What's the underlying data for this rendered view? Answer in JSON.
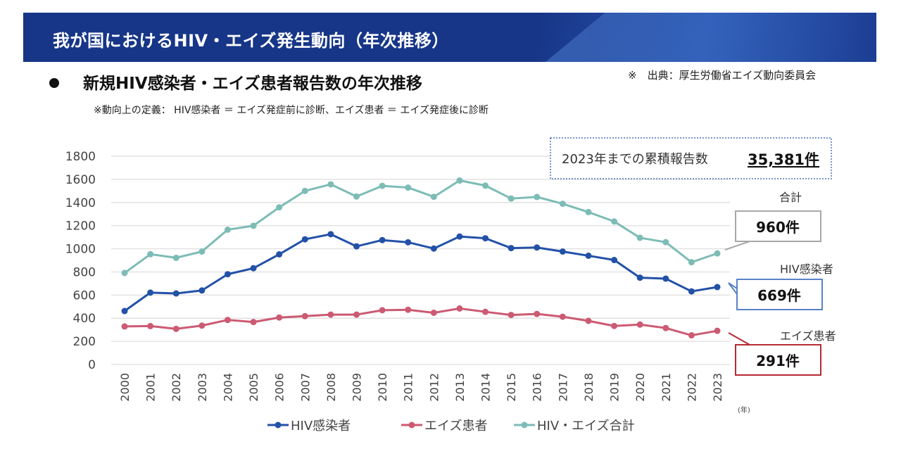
{
  "header": {
    "title": "我が国におけるHIV・エイズ発生動向（年次推移）"
  },
  "subtitle": "新規HIV感染者・エイズ患者報告数の年次推移",
  "source": "※　出典：厚生労働省エイズ動向委員会",
  "definition": "※動向上の定義： HIV感染者 ＝ エイズ発症前に診断、エイズ患者 ＝ エイズ発症後に診断",
  "cumulative": {
    "label": "2023年までの累積報告数",
    "value": "35,381件"
  },
  "callouts": {
    "total": {
      "label": "合計",
      "value": "960件"
    },
    "hiv": {
      "label": "HIV感染者",
      "value": "669件"
    },
    "aids": {
      "label": "エイズ患者",
      "value": "291件"
    }
  },
  "chart_data": {
    "type": "line",
    "x_unit": "(年)",
    "ylim": [
      0,
      1800
    ],
    "y_ticks": [
      "0",
      "200",
      "400",
      "600",
      "800",
      "1000",
      "1200",
      "1400",
      "1600",
      "1800"
    ],
    "grid": true,
    "legend_position": "bottom",
    "categories": [
      "2000",
      "2001",
      "2002",
      "2003",
      "2004",
      "2005",
      "2006",
      "2007",
      "2008",
      "2009",
      "2010",
      "2011",
      "2012",
      "2013",
      "2014",
      "2015",
      "2016",
      "2017",
      "2018",
      "2019",
      "2020",
      "2021",
      "2022",
      "2023"
    ],
    "series": [
      {
        "name": "HIV感染者",
        "color": "#2351a8",
        "values": [
          462,
          621,
          614,
          640,
          780,
          832,
          952,
          1082,
          1126,
          1021,
          1075,
          1056,
          1002,
          1106,
          1091,
          1006,
          1011,
          976,
          940,
          903,
          750,
          742,
          632,
          669
        ]
      },
      {
        "name": "エイズ患者",
        "color": "#cc5a72",
        "values": [
          329,
          332,
          308,
          336,
          385,
          367,
          406,
          418,
          431,
          431,
          469,
          473,
          447,
          484,
          455,
          428,
          437,
          413,
          377,
          333,
          345,
          315,
          252,
          291
        ]
      },
      {
        "name": "HIV・エイズ合計",
        "color": "#7dbcb6",
        "values": [
          791,
          953,
          922,
          976,
          1165,
          1199,
          1358,
          1500,
          1557,
          1452,
          1544,
          1529,
          1449,
          1590,
          1546,
          1434,
          1448,
          1389,
          1317,
          1236,
          1095,
          1057,
          884,
          960
        ]
      }
    ]
  }
}
